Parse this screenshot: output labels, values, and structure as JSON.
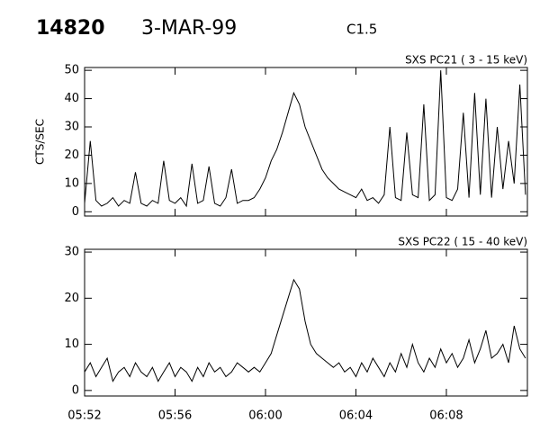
{
  "header": {
    "id": "14820",
    "date": "3-MAR-99",
    "class": "C1.5"
  },
  "chart_data": [
    {
      "type": "line",
      "title": "SXS PC21  (  3 - 15 keV)",
      "y_label": "CTS/SEC",
      "color": "#000000",
      "x": [
        "05:52:00",
        "05:52:15",
        "05:52:30",
        "05:52:45",
        "05:53:00",
        "05:53:15",
        "05:53:30",
        "05:53:45",
        "05:54:00",
        "05:54:15",
        "05:54:30",
        "05:54:45",
        "05:55:00",
        "05:55:15",
        "05:55:30",
        "05:55:45",
        "05:56:00",
        "05:56:15",
        "05:56:30",
        "05:56:45",
        "05:57:00",
        "05:57:15",
        "05:57:30",
        "05:57:45",
        "05:58:00",
        "05:58:15",
        "05:58:30",
        "05:58:45",
        "05:59:00",
        "05:59:15",
        "05:59:30",
        "05:59:45",
        "06:00:00",
        "06:00:15",
        "06:00:30",
        "06:00:45",
        "06:01:00",
        "06:01:15",
        "06:01:30",
        "06:01:45",
        "06:02:00",
        "06:02:15",
        "06:02:30",
        "06:02:45",
        "06:03:00",
        "06:03:15",
        "06:03:30",
        "06:03:45",
        "06:04:00",
        "06:04:15",
        "06:04:30",
        "06:04:45",
        "06:05:00",
        "06:05:15",
        "06:05:30",
        "06:05:45",
        "06:06:00",
        "06:06:15",
        "06:06:30",
        "06:06:45",
        "06:07:00",
        "06:07:15",
        "06:07:30",
        "06:07:45",
        "06:08:00",
        "06:08:15",
        "06:08:30",
        "06:08:45",
        "06:09:00",
        "06:09:15",
        "06:09:30",
        "06:09:45",
        "06:10:00",
        "06:10:15",
        "06:10:30",
        "06:10:45",
        "06:11:00",
        "06:11:15",
        "06:11:30"
      ],
      "values": [
        3,
        25,
        4,
        2,
        3,
        5,
        2,
        4,
        3,
        14,
        3,
        2,
        4,
        3,
        18,
        4,
        3,
        5,
        2,
        17,
        3,
        4,
        16,
        3,
        2,
        5,
        15,
        3,
        4,
        4,
        5,
        8,
        12,
        18,
        22,
        28,
        35,
        42,
        38,
        30,
        25,
        20,
        15,
        12,
        10,
        8,
        7,
        6,
        5,
        8,
        4,
        5,
        3,
        6,
        30,
        5,
        4,
        28,
        6,
        5,
        38,
        4,
        6,
        50,
        5,
        4,
        8,
        35,
        5,
        42,
        6,
        40,
        5,
        30,
        8,
        25,
        10,
        45,
        6
      ],
      "xlim": [
        "05:52:00",
        "06:11:35"
      ],
      "xticks": [
        "05:52",
        "05:56",
        "06:00",
        "06:04",
        "06:08"
      ],
      "ylim": [
        -1.5,
        51
      ],
      "yticks": [
        0,
        10,
        20,
        30,
        40,
        50
      ]
    },
    {
      "type": "line",
      "title": "SXS PC22  ( 15 - 40 keV)",
      "color": "#000000",
      "x": [
        "05:52:00",
        "05:52:15",
        "05:52:30",
        "05:52:45",
        "05:53:00",
        "05:53:15",
        "05:53:30",
        "05:53:45",
        "05:54:00",
        "05:54:15",
        "05:54:30",
        "05:54:45",
        "05:55:00",
        "05:55:15",
        "05:55:30",
        "05:55:45",
        "05:56:00",
        "05:56:15",
        "05:56:30",
        "05:56:45",
        "05:57:00",
        "05:57:15",
        "05:57:30",
        "05:57:45",
        "05:58:00",
        "05:58:15",
        "05:58:30",
        "05:58:45",
        "05:59:00",
        "05:59:15",
        "05:59:30",
        "05:59:45",
        "06:00:00",
        "06:00:15",
        "06:00:30",
        "06:00:45",
        "06:01:00",
        "06:01:15",
        "06:01:30",
        "06:01:45",
        "06:02:00",
        "06:02:15",
        "06:02:30",
        "06:02:45",
        "06:03:00",
        "06:03:15",
        "06:03:30",
        "06:03:45",
        "06:04:00",
        "06:04:15",
        "06:04:30",
        "06:04:45",
        "06:05:00",
        "06:05:15",
        "06:05:30",
        "06:05:45",
        "06:06:00",
        "06:06:15",
        "06:06:30",
        "06:06:45",
        "06:07:00",
        "06:07:15",
        "06:07:30",
        "06:07:45",
        "06:08:00",
        "06:08:15",
        "06:08:30",
        "06:08:45",
        "06:09:00",
        "06:09:15",
        "06:09:30",
        "06:09:45",
        "06:10:00",
        "06:10:15",
        "06:10:30",
        "06:10:45",
        "06:11:00",
        "06:11:15",
        "06:11:30"
      ],
      "values": [
        4,
        6,
        3,
        5,
        7,
        2,
        4,
        5,
        3,
        6,
        4,
        3,
        5,
        2,
        4,
        6,
        3,
        5,
        4,
        2,
        5,
        3,
        6,
        4,
        5,
        3,
        4,
        6,
        5,
        4,
        5,
        4,
        6,
        8,
        12,
        16,
        20,
        24,
        22,
        15,
        10,
        8,
        7,
        6,
        5,
        6,
        4,
        5,
        3,
        6,
        4,
        7,
        5,
        3,
        6,
        4,
        8,
        5,
        10,
        6,
        4,
        7,
        5,
        9,
        6,
        8,
        5,
        7,
        11,
        6,
        9,
        13,
        7,
        8,
        10,
        6,
        14,
        9,
        7
      ],
      "xlim": [
        "05:52:00",
        "06:11:35"
      ],
      "xticks": [
        "05:52",
        "05:56",
        "06:00",
        "06:04",
        "06:08"
      ],
      "ylim": [
        -1.2,
        30.6
      ],
      "yticks": [
        0,
        10,
        20,
        30
      ]
    }
  ]
}
